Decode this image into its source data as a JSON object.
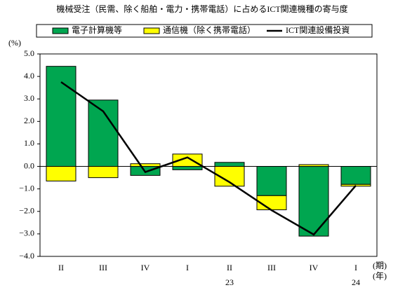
{
  "chart_data": {
    "type": "stacked_bar_line",
    "title": "機械受注（民需、除く船舶・電力・携帯電話）に占めるICT関連機種の寄与度",
    "y_unit": "(%)",
    "x_unit": "(期)",
    "year_unit": "(年)",
    "categories": [
      "II",
      "III",
      "IV",
      "I",
      "II",
      "III",
      "IV",
      "I"
    ],
    "years": [
      null,
      null,
      null,
      null,
      "23",
      null,
      null,
      "24"
    ],
    "series": [
      {
        "name": "電子計算機等",
        "color": "#00a650",
        "kind": "bar",
        "values": [
          4.45,
          2.95,
          -0.4,
          -0.15,
          0.18,
          -1.3,
          -3.1,
          -0.8
        ]
      },
      {
        "name": "通信機（除く携帯電話）",
        "color": "#ffff00",
        "kind": "bar",
        "values": [
          -0.65,
          -0.5,
          0.12,
          0.55,
          -0.88,
          -0.63,
          0.08,
          -0.08
        ]
      },
      {
        "name": "ICT関連設備投資",
        "color": "#000000",
        "kind": "line",
        "values": [
          3.75,
          2.45,
          -0.25,
          0.4,
          -0.7,
          -1.95,
          -3.03,
          -0.85
        ]
      }
    ],
    "ylim": [
      -4.0,
      5.0
    ],
    "yticks": [
      {
        "value": 5,
        "label": "5.0"
      },
      {
        "value": 4,
        "label": "4.0"
      },
      {
        "value": 3,
        "label": "3.0"
      },
      {
        "value": 2,
        "label": "2.0"
      },
      {
        "value": 1,
        "label": "1.0"
      },
      {
        "value": 0,
        "label": "0.0"
      },
      {
        "value": -1,
        "label": "−1.0"
      },
      {
        "value": -2,
        "label": "−2.0"
      },
      {
        "value": -3,
        "label": "−3.0"
      },
      {
        "value": -4,
        "label": "−4.0"
      }
    ]
  }
}
